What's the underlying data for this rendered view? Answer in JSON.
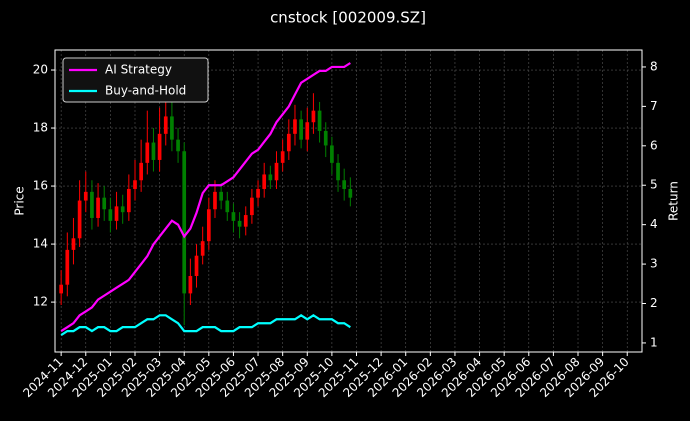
{
  "chart_data": {
    "type": "candlestick",
    "title": "cnstock [002009.SZ]",
    "ylabel": "Price",
    "y2label": "Return",
    "x": [
      0,
      0.25,
      0.5,
      0.75,
      1,
      1.25,
      1.5,
      1.75,
      2,
      2.25,
      2.5,
      2.75,
      3,
      3.25,
      3.5,
      3.75,
      4,
      4.25,
      4.5,
      4.75,
      5,
      5.25,
      5.5,
      5.75,
      6,
      6.25,
      6.5,
      6.75,
      7,
      7.25,
      7.5,
      7.75,
      8,
      8.25,
      8.5,
      8.75,
      9,
      9.25,
      9.5,
      9.75,
      10,
      10.25,
      10.5,
      10.75,
      11,
      11.25,
      11.5,
      11.75
    ],
    "open": [
      12.3,
      12.6,
      13.8,
      14.2,
      15.5,
      15.8,
      14.9,
      15.6,
      15.2,
      14.8,
      15.3,
      15.1,
      15.9,
      16.2,
      16.8,
      17.5,
      16.9,
      17.8,
      18.4,
      17.6,
      17.2,
      12.3,
      12.9,
      13.6,
      14.1,
      15.2,
      15.8,
      15.5,
      15.1,
      14.8,
      14.6,
      15.0,
      15.6,
      15.9,
      16.4,
      16.2,
      16.8,
      17.2,
      17.8,
      18.3,
      17.6,
      18.2,
      18.6,
      17.9,
      17.4,
      16.8,
      16.2,
      15.9
    ],
    "high": [
      13.1,
      14.4,
      14.9,
      16.2,
      16.5,
      16.2,
      16.1,
      16.0,
      15.6,
      15.8,
      15.7,
      16.4,
      16.9,
      17.6,
      18.6,
      18.0,
      18.7,
      19.1,
      18.9,
      18.0,
      17.5,
      13.5,
      14.0,
      14.6,
      15.6,
      16.2,
      16.1,
      15.8,
      15.4,
      15.1,
      15.3,
      15.9,
      16.2,
      16.8,
      16.7,
      17.2,
      17.6,
      18.3,
      18.8,
      18.6,
      18.7,
      19.2,
      18.9,
      18.2,
      17.7,
      17.1,
      16.6,
      16.3
    ],
    "low": [
      11.9,
      12.2,
      13.3,
      13.9,
      15.1,
      14.5,
      14.6,
      14.8,
      14.4,
      14.5,
      14.7,
      14.8,
      15.5,
      15.8,
      16.4,
      16.5,
      16.5,
      17.4,
      17.2,
      16.8,
      11.2,
      11.9,
      12.5,
      13.3,
      13.8,
      14.9,
      15.2,
      14.8,
      14.4,
      14.2,
      14.3,
      14.7,
      15.3,
      15.6,
      15.9,
      15.9,
      16.5,
      16.9,
      17.4,
      17.3,
      17.2,
      17.8,
      17.5,
      17.0,
      16.4,
      15.8,
      15.5,
      15.3
    ],
    "close": [
      12.6,
      13.8,
      14.2,
      15.5,
      15.8,
      14.9,
      15.6,
      15.2,
      14.8,
      15.3,
      15.1,
      15.9,
      16.2,
      16.8,
      17.5,
      16.9,
      17.8,
      18.4,
      17.6,
      17.2,
      12.3,
      12.9,
      13.6,
      14.1,
      15.2,
      15.8,
      15.5,
      15.1,
      14.8,
      14.6,
      15.0,
      15.6,
      15.9,
      16.4,
      16.2,
      16.8,
      17.2,
      17.8,
      18.3,
      17.6,
      18.2,
      18.6,
      17.9,
      17.4,
      16.8,
      16.2,
      15.9,
      15.6
    ],
    "up_color": "#ff0000",
    "down_color": "#008000",
    "series": [
      {
        "name": "AI Strategy",
        "color": "#ff00ff",
        "axis": "y2",
        "values": [
          1.3,
          1.4,
          1.5,
          1.7,
          1.8,
          1.9,
          2.1,
          2.2,
          2.3,
          2.4,
          2.5,
          2.6,
          2.8,
          3.0,
          3.2,
          3.5,
          3.7,
          3.9,
          4.1,
          4.0,
          3.7,
          3.9,
          4.3,
          4.8,
          5.0,
          5.0,
          5.0,
          5.1,
          5.2,
          5.4,
          5.6,
          5.8,
          5.9,
          6.1,
          6.3,
          6.6,
          6.8,
          7.0,
          7.3,
          7.6,
          7.7,
          7.8,
          7.9,
          7.9,
          8.0,
          8.0,
          8.0,
          8.1
        ]
      },
      {
        "name": "Buy-and-Hold",
        "color": "#00ffff",
        "axis": "y2",
        "values": [
          1.2,
          1.3,
          1.3,
          1.4,
          1.4,
          1.3,
          1.4,
          1.4,
          1.3,
          1.3,
          1.4,
          1.4,
          1.4,
          1.5,
          1.6,
          1.6,
          1.7,
          1.7,
          1.6,
          1.5,
          1.3,
          1.3,
          1.3,
          1.4,
          1.4,
          1.4,
          1.3,
          1.3,
          1.3,
          1.4,
          1.4,
          1.4,
          1.5,
          1.5,
          1.5,
          1.6,
          1.6,
          1.6,
          1.6,
          1.7,
          1.6,
          1.7,
          1.6,
          1.6,
          1.6,
          1.5,
          1.5,
          1.4
        ]
      }
    ],
    "xlim": [
      -0.25,
      23.6
    ],
    "xticks": [
      {
        "value": 0,
        "label": "2024-11"
      },
      {
        "value": 1,
        "label": "2024-12"
      },
      {
        "value": 2,
        "label": "2025-01"
      },
      {
        "value": 3,
        "label": "2025-02"
      },
      {
        "value": 4,
        "label": "2025-03"
      },
      {
        "value": 5,
        "label": "2025-04"
      },
      {
        "value": 6,
        "label": "2025-05"
      },
      {
        "value": 7,
        "label": "2025-06"
      },
      {
        "value": 8,
        "label": "2025-07"
      },
      {
        "value": 9,
        "label": "2025-08"
      },
      {
        "value": 10,
        "label": "2025-09"
      },
      {
        "value": 11,
        "label": "2025-10"
      },
      {
        "value": 12,
        "label": "2025-11"
      },
      {
        "value": 13,
        "label": "2025-12"
      },
      {
        "value": 14,
        "label": "2026-01"
      },
      {
        "value": 15,
        "label": "2026-02"
      },
      {
        "value": 16,
        "label": "2026-03"
      },
      {
        "value": 17,
        "label": "2026-04"
      },
      {
        "value": 18,
        "label": "2026-05"
      },
      {
        "value": 19,
        "label": "2026-06"
      },
      {
        "value": 20,
        "label": "2026-07"
      },
      {
        "value": 21,
        "label": "2026-08"
      },
      {
        "value": 22,
        "label": "2026-09"
      },
      {
        "value": 23,
        "label": "2026-10"
      }
    ],
    "ylim": [
      10.28,
      20.69
    ],
    "yticks": [
      12,
      14,
      16,
      18,
      20
    ],
    "y2lim": [
      0.77,
      8.43
    ],
    "y2ticks": [
      1,
      2,
      3,
      4,
      5,
      6,
      7,
      8
    ],
    "grid": true,
    "legend": "upper left"
  }
}
